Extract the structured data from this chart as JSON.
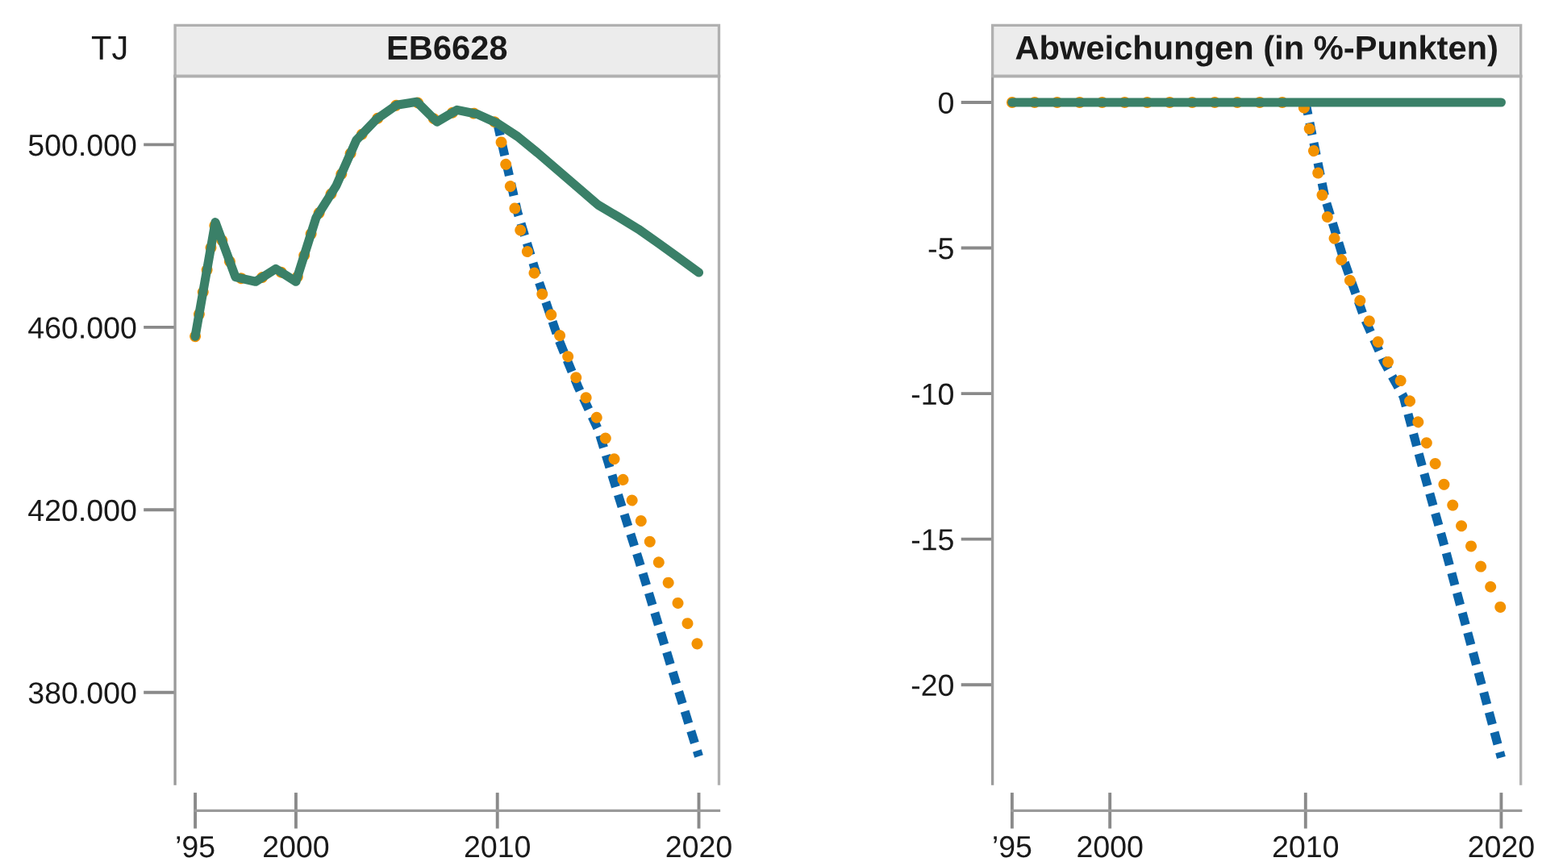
{
  "chart_data": [
    {
      "type": "line",
      "title": "EB6628",
      "ylabel": "TJ",
      "x": [
        1995,
        1996,
        1997,
        1998,
        1999,
        2000,
        2001,
        2002,
        2003,
        2004,
        2005,
        2006,
        2007,
        2008,
        2009,
        2010,
        2011,
        2012,
        2013,
        2014,
        2015,
        2016,
        2017,
        2018,
        2019,
        2020
      ],
      "series": [
        {
          "color": "#0a64a8",
          "line_style": "dashed",
          "values": [
            null,
            null,
            null,
            null,
            null,
            null,
            null,
            null,
            null,
            null,
            null,
            null,
            null,
            null,
            null,
            504700,
            485200,
            470800,
            457800,
            447000,
            437600,
            423200,
            409300,
            394700,
            380200,
            366000
          ]
        },
        {
          "color": "#f39200",
          "line_style": "dotted",
          "values": [
            458000,
            483000,
            471000,
            470000,
            472800,
            470000,
            484000,
            491000,
            501000,
            505600,
            508700,
            509400,
            505000,
            507600,
            506700,
            504700,
            483200,
            469600,
            459300,
            447900,
            439600,
            429000,
            418900,
            408600,
            399200,
            389900
          ]
        },
        {
          "color": "#3a8068",
          "line_style": "solid",
          "values": [
            458000,
            483000,
            471000,
            470000,
            472800,
            470000,
            484000,
            491000,
            501000,
            505600,
            508700,
            509400,
            505000,
            507600,
            506700,
            504700,
            501800,
            498200,
            494400,
            490600,
            486800,
            484200,
            481500,
            478400,
            475200,
            472000
          ]
        }
      ],
      "xlim": [
        1994,
        2021
      ],
      "xticks": [
        {
          "value": 1995,
          "label": "’95"
        },
        2000,
        2010,
        2020
      ],
      "ylim": [
        360000,
        515000
      ],
      "yticks": [
        {
          "value": 380000,
          "label": "380.000"
        },
        {
          "value": 420000,
          "label": "420.000"
        },
        {
          "value": 460000,
          "label": "460.000"
        },
        {
          "value": 500000,
          "label": "500.000"
        }
      ],
      "grid": false,
      "legend": false,
      "marker": "none"
    },
    {
      "type": "line",
      "title": "Abweichungen (in %-Punkten)",
      "x": [
        1995,
        1996,
        1997,
        1998,
        1999,
        2000,
        2001,
        2002,
        2003,
        2004,
        2005,
        2006,
        2007,
        2008,
        2009,
        2010,
        2011,
        2012,
        2013,
        2014,
        2015,
        2016,
        2017,
        2018,
        2019,
        2020
      ],
      "series": [
        {
          "color": "#0a64a8",
          "line_style": "dashed",
          "values": [
            null,
            null,
            null,
            null,
            null,
            null,
            null,
            null,
            null,
            null,
            null,
            null,
            null,
            null,
            null,
            0,
            -3.3,
            -5.5,
            -7.4,
            -8.9,
            -10.1,
            -12.6,
            -15.0,
            -17.5,
            -20.0,
            -22.5
          ]
        },
        {
          "color": "#f39200",
          "line_style": "dotted",
          "values": [
            0,
            0,
            0,
            0,
            0,
            0,
            0,
            0,
            0,
            0,
            0,
            0,
            0,
            0,
            0,
            -0.2,
            -3.7,
            -5.75,
            -7.1,
            -8.7,
            -9.7,
            -11.4,
            -13.0,
            -14.6,
            -16.0,
            -17.4
          ]
        },
        {
          "color": "#3a8068",
          "line_style": "solid",
          "values": [
            0,
            0,
            0,
            0,
            0,
            0,
            0,
            0,
            0,
            0,
            0,
            0,
            0,
            0,
            0,
            0,
            0,
            0,
            0,
            0,
            0,
            0,
            0,
            0,
            0,
            0
          ]
        }
      ],
      "xlim": [
        1994,
        2021
      ],
      "xticks": [
        {
          "value": 1995,
          "label": "’95"
        },
        2000,
        2010,
        2020
      ],
      "ylim": [
        -23.4,
        0.9
      ],
      "yticks": [
        {
          "value": -20,
          "label": "-20"
        },
        {
          "value": -15,
          "label": "-15"
        },
        {
          "value": -10,
          "label": "-10"
        },
        {
          "value": -5,
          "label": "-5"
        },
        0
      ],
      "grid": false,
      "legend": false,
      "marker": "none"
    }
  ]
}
